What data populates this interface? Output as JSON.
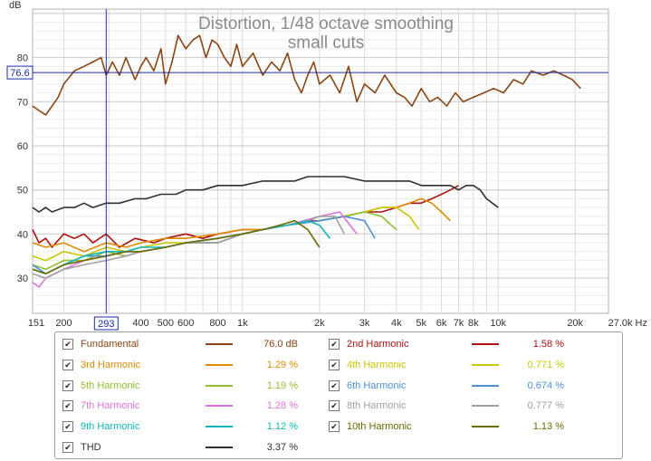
{
  "chart_data": {
    "type": "line",
    "title": "Distortion, 1/48 octave smoothing",
    "subtitle": "small cuts",
    "ylabel": "dB",
    "xlabel": "",
    "x_unit": "Hz",
    "x_scale": "log",
    "xlim": [
      151,
      27000
    ],
    "ylim": [
      22,
      91
    ],
    "grid": true,
    "legend": "bottom",
    "y_ticks": [
      "30",
      "40",
      "50",
      "60",
      "70",
      "80"
    ],
    "y_tick_values": [
      30,
      40,
      50,
      60,
      70,
      80
    ],
    "x_ticks": [
      "151",
      "200",
      "400",
      "500",
      "600",
      "800",
      "1k",
      "2k",
      "3k",
      "4k",
      "5k",
      "6k",
      "7k",
      "8k",
      "10k",
      "20k",
      "27.0k Hz"
    ],
    "x_tick_values": [
      151,
      200,
      400,
      500,
      600,
      800,
      1000,
      2000,
      3000,
      4000,
      5000,
      6000,
      7000,
      8000,
      10000,
      20000,
      27000
    ],
    "cursor": {
      "x": 293,
      "y": 76.6,
      "x_label": "293",
      "y_label": "76.6"
    },
    "series": [
      {
        "name": "Fundamental",
        "value": "76.0 dB",
        "color": "#8b4513",
        "checked": true,
        "x": [
          151,
          160,
          170,
          180,
          190,
          200,
          220,
          240,
          260,
          280,
          293,
          310,
          330,
          350,
          380,
          400,
          420,
          450,
          480,
          500,
          530,
          560,
          600,
          640,
          680,
          720,
          760,
          800,
          850,
          900,
          950,
          1000,
          1100,
          1200,
          1300,
          1400,
          1500,
          1600,
          1700,
          1800,
          1900,
          2000,
          2200,
          2400,
          2600,
          2800,
          3000,
          3300,
          3600,
          4000,
          4300,
          4600,
          5000,
          5400,
          5800,
          6300,
          6800,
          7300,
          8000,
          8800,
          9600,
          10500,
          11500,
          12500,
          13500,
          15000,
          16500,
          18000,
          19500,
          21000
        ],
        "y": [
          69,
          68,
          67,
          69,
          71,
          74,
          77,
          78,
          79,
          80,
          76,
          79,
          76,
          80,
          75,
          78,
          80,
          77,
          82,
          74,
          79,
          85,
          82,
          84,
          85,
          80,
          84,
          83,
          80,
          78,
          83,
          78,
          81,
          76,
          79,
          77,
          81,
          75,
          72,
          76,
          79,
          74,
          76,
          72,
          78,
          70,
          74,
          72,
          76,
          72,
          71,
          69,
          73,
          70,
          71,
          69,
          72,
          70,
          71,
          72,
          73,
          72,
          75,
          74,
          77,
          76,
          77,
          76,
          75,
          73
        ]
      },
      {
        "name": "2nd Harmonic",
        "value": "1.58 %",
        "color": "#b01010",
        "checked": true,
        "x": [
          151,
          160,
          170,
          180,
          200,
          220,
          240,
          260,
          293,
          330,
          380,
          450,
          500,
          600,
          700,
          800,
          1000,
          1200,
          1500,
          1800,
          2000,
          2500,
          3000,
          3500,
          4000,
          4500,
          5000,
          5500,
          6000,
          6500,
          7000
        ],
        "y": [
          41,
          38,
          39,
          37,
          40,
          39,
          40,
          38,
          40,
          37,
          39,
          38,
          39,
          40,
          39,
          40,
          41,
          41,
          42,
          43,
          43,
          44,
          45,
          45,
          46,
          47,
          47,
          48,
          49,
          50,
          51
        ]
      },
      {
        "name": "3rd Harmonic",
        "value": "1.29 %",
        "color": "#e08a00",
        "checked": true,
        "x": [
          151,
          170,
          200,
          240,
          293,
          350,
          400,
          500,
          600,
          800,
          1000,
          1200,
          1500,
          2000,
          2500,
          3000,
          3500,
          4000,
          4500,
          5000,
          5500,
          6000,
          6500
        ],
        "y": [
          38,
          37,
          38,
          36,
          38,
          37,
          38,
          39,
          39,
          40,
          41,
          41,
          42,
          43,
          44,
          45,
          46,
          46,
          47,
          48,
          47,
          45,
          43
        ]
      },
      {
        "name": "4th Harmonic",
        "value": "0.771 %",
        "color": "#c8c800",
        "checked": true,
        "x": [
          151,
          170,
          200,
          240,
          293,
          350,
          400,
          500,
          600,
          800,
          1000,
          1200,
          1500,
          2000,
          2500,
          3000,
          3500,
          4000,
          4500,
          4900
        ],
        "y": [
          35,
          34,
          36,
          35,
          37,
          36,
          37,
          38,
          38,
          39,
          40,
          41,
          42,
          43,
          44,
          45,
          46,
          46,
          44,
          41
        ]
      },
      {
        "name": "5th Harmonic",
        "value": "1.19 %",
        "color": "#8fbf2f",
        "checked": true,
        "x": [
          151,
          170,
          200,
          240,
          293,
          350,
          400,
          500,
          600,
          800,
          1000,
          1200,
          1500,
          2000,
          2500,
          3000,
          3500,
          4000
        ],
        "y": [
          33,
          32,
          34,
          34,
          36,
          35,
          36,
          37,
          38,
          38,
          40,
          41,
          42,
          43,
          44,
          45,
          44,
          41
        ]
      },
      {
        "name": "6th Harmonic",
        "value": "0.674 %",
        "color": "#4f8fd8",
        "checked": true,
        "x": [
          151,
          170,
          200,
          240,
          293,
          350,
          400,
          500,
          600,
          800,
          1000,
          1200,
          1500,
          2000,
          2500,
          3000,
          3300
        ],
        "y": [
          33,
          31,
          33,
          35,
          35,
          36,
          36,
          37,
          38,
          38,
          40,
          41,
          42,
          43,
          44,
          43,
          39
        ]
      },
      {
        "name": "7th Harmonic",
        "value": "1.28 %",
        "color": "#e070e0",
        "checked": true,
        "x": [
          151,
          160,
          170,
          200,
          240,
          293,
          350,
          400,
          500,
          600,
          800,
          1000,
          1200,
          1500,
          2000,
          2400,
          2800
        ],
        "y": [
          29,
          28,
          30,
          32,
          34,
          35,
          36,
          36,
          37,
          38,
          39,
          40,
          41,
          42,
          44,
          45,
          40
        ]
      },
      {
        "name": "8th Harmonic",
        "value": "0.777 %",
        "color": "#a0a0a0",
        "checked": true,
        "x": [
          151,
          170,
          200,
          240,
          293,
          350,
          400,
          500,
          600,
          800,
          1000,
          1200,
          1500,
          1800,
          2000,
          2300,
          2500
        ],
        "y": [
          31,
          30,
          32,
          33,
          34,
          35,
          36,
          37,
          38,
          38,
          40,
          41,
          42,
          43,
          44,
          44,
          40
        ]
      },
      {
        "name": "9th Harmonic",
        "value": "1.12 %",
        "color": "#10b8b8",
        "checked": true,
        "x": [
          151,
          170,
          200,
          240,
          293,
          350,
          400,
          500,
          600,
          800,
          1000,
          1200,
          1500,
          1800,
          2000,
          2200
        ],
        "y": [
          32,
          31,
          33,
          35,
          36,
          36,
          37,
          37,
          38,
          39,
          40,
          41,
          42,
          43,
          42,
          39
        ]
      },
      {
        "name": "10th Harmonic",
        "value": "1.13 %",
        "color": "#6b6b00",
        "checked": true,
        "x": [
          151,
          170,
          200,
          240,
          293,
          350,
          400,
          500,
          600,
          800,
          1000,
          1200,
          1400,
          1600,
          1800,
          2000
        ],
        "y": [
          32,
          31,
          33,
          34,
          35,
          36,
          36,
          37,
          38,
          39,
          40,
          41,
          42,
          43,
          41,
          37
        ]
      },
      {
        "name": "THD",
        "value": "3.37 %",
        "color": "#303030",
        "checked": true,
        "x": [
          151,
          160,
          170,
          180,
          200,
          220,
          240,
          260,
          293,
          330,
          380,
          420,
          480,
          550,
          600,
          700,
          800,
          900,
          1000,
          1200,
          1400,
          1600,
          1800,
          2000,
          2200,
          2500,
          3000,
          3500,
          4000,
          4500,
          5000,
          5500,
          6000,
          6500,
          7000,
          7500,
          8000,
          8500,
          9000,
          9500,
          10000
        ],
        "y": [
          46,
          45,
          46,
          45,
          46,
          46,
          47,
          46,
          47,
          47,
          48,
          48,
          49,
          49,
          50,
          50,
          51,
          51,
          51,
          52,
          52,
          52,
          53,
          53,
          53,
          53,
          52,
          52,
          52,
          52,
          51,
          51,
          51,
          51,
          50,
          51,
          51,
          50,
          48,
          47,
          46
        ]
      }
    ]
  }
}
